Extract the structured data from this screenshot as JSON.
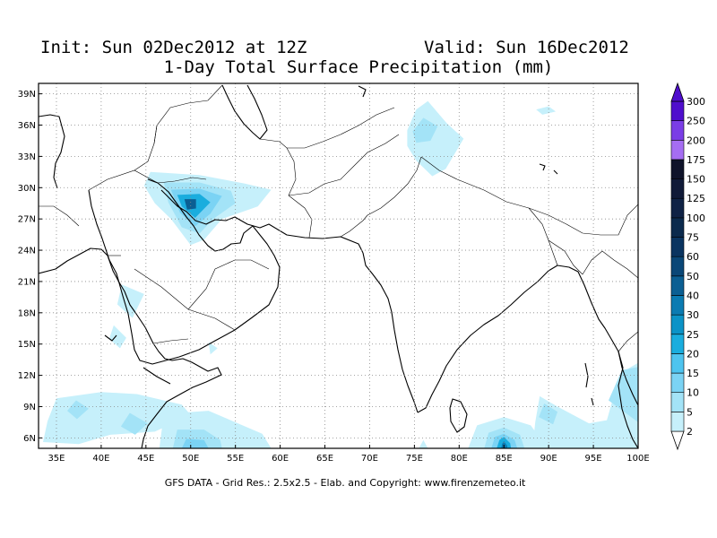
{
  "header": {
    "init": "Init: Sun 02Dec2012 at 12Z",
    "valid": "Valid: Sun 16Dec2012",
    "title": "1-Day Total Surface Precipitation (mm)"
  },
  "map": {
    "lon_range": [
      33,
      100
    ],
    "lat_range": [
      5,
      40
    ],
    "grid": true,
    "lat_ticks": [
      {
        "value": 39,
        "label": "39N"
      },
      {
        "value": 36,
        "label": "36N"
      },
      {
        "value": 33,
        "label": "33N"
      },
      {
        "value": 30,
        "label": "30N"
      },
      {
        "value": 27,
        "label": "27N"
      },
      {
        "value": 24,
        "label": "24N"
      },
      {
        "value": 21,
        "label": "21N"
      },
      {
        "value": 18,
        "label": "18N"
      },
      {
        "value": 15,
        "label": "15N"
      },
      {
        "value": 12,
        "label": "12N"
      },
      {
        "value": 9,
        "label": "9N"
      },
      {
        "value": 6,
        "label": "6N"
      }
    ],
    "lon_ticks": [
      {
        "value": 35,
        "label": "35E"
      },
      {
        "value": 40,
        "label": "40E"
      },
      {
        "value": 45,
        "label": "45E"
      },
      {
        "value": 50,
        "label": "50E"
      },
      {
        "value": 55,
        "label": "55E"
      },
      {
        "value": 60,
        "label": "60E"
      },
      {
        "value": 65,
        "label": "65E"
      },
      {
        "value": 70,
        "label": "70E"
      },
      {
        "value": 75,
        "label": "75E"
      },
      {
        "value": 80,
        "label": "80E"
      },
      {
        "value": 85,
        "label": "85E"
      },
      {
        "value": 90,
        "label": "90E"
      },
      {
        "value": 95,
        "label": "95E"
      },
      {
        "value": 100,
        "label": "100E"
      }
    ],
    "precip_areas": [
      {
        "level": 2,
        "pts": [
          [
            45.5,
            31.5
          ],
          [
            51,
            31.2
          ],
          [
            56,
            30.4
          ],
          [
            59,
            29.8
          ],
          [
            57.5,
            28.2
          ],
          [
            53.5,
            27
          ],
          [
            51.5,
            25
          ],
          [
            50,
            24.5
          ],
          [
            47.8,
            27
          ],
          [
            46,
            28.5
          ],
          [
            44.8,
            30.2
          ]
        ]
      },
      {
        "level": 5,
        "pts": [
          [
            47,
            30.5
          ],
          [
            51,
            30.5
          ],
          [
            54.5,
            29.7
          ],
          [
            55,
            28.5
          ],
          [
            52.5,
            27
          ],
          [
            51,
            25.6
          ],
          [
            49,
            26.2
          ],
          [
            47.5,
            28.6
          ]
        ]
      },
      {
        "level": 10,
        "pts": [
          [
            47.8,
            29.8
          ],
          [
            51,
            29.9
          ],
          [
            53.5,
            29.2
          ],
          [
            52.2,
            27.5
          ],
          [
            50.5,
            26.3
          ],
          [
            48.8,
            27.6
          ]
        ]
      },
      {
        "level": 20,
        "pts": [
          [
            48.5,
            29.3
          ],
          [
            51,
            29.4
          ],
          [
            52.2,
            28.6
          ],
          [
            50.5,
            27.1
          ],
          [
            49,
            28.2
          ]
        ]
      },
      {
        "level": 40,
        "pts": [
          [
            49.3,
            28.9
          ],
          [
            50.6,
            28.9
          ],
          [
            50.6,
            28
          ],
          [
            49.6,
            27.9
          ]
        ]
      },
      {
        "level": 2,
        "pts": [
          [
            42.3,
            20.7
          ],
          [
            44.8,
            19.8
          ],
          [
            43.5,
            17.5
          ],
          [
            41.8,
            18.8
          ]
        ]
      },
      {
        "level": 2,
        "pts": [
          [
            41.4,
            16.8
          ],
          [
            42.8,
            15.6
          ],
          [
            42.1,
            14.6
          ],
          [
            40.9,
            15.5
          ]
        ]
      },
      {
        "level": 2,
        "pts": [
          [
            52,
            15.2
          ],
          [
            53,
            14.6
          ],
          [
            52.2,
            14
          ]
        ]
      },
      {
        "level": 2,
        "pts": [
          [
            35,
            9.8
          ],
          [
            40,
            10.4
          ],
          [
            44,
            10.2
          ],
          [
            49,
            9.2
          ],
          [
            50,
            8.2
          ],
          [
            46,
            6.6
          ],
          [
            41,
            6.3
          ],
          [
            37.5,
            5.4
          ],
          [
            33.5,
            5.6
          ],
          [
            34,
            7.6
          ]
        ]
      },
      {
        "level": 5,
        "pts": [
          [
            37.2,
            9.6
          ],
          [
            38.6,
            8.8
          ],
          [
            37.3,
            7.8
          ],
          [
            36.2,
            8.6
          ]
        ]
      },
      {
        "level": 5,
        "pts": [
          [
            43.2,
            8.4
          ],
          [
            45.2,
            7.4
          ],
          [
            43.8,
            6.3
          ],
          [
            42.2,
            7.1
          ]
        ]
      },
      {
        "level": 2,
        "pts": [
          [
            47,
            8.3
          ],
          [
            52,
            8.6
          ],
          [
            58,
            6.4
          ],
          [
            59,
            5
          ],
          [
            46.5,
            5
          ]
        ]
      },
      {
        "level": 5,
        "pts": [
          [
            48.5,
            6.8
          ],
          [
            51.5,
            6.8
          ],
          [
            53.3,
            5.8
          ],
          [
            53.5,
            5
          ],
          [
            48,
            5
          ]
        ]
      },
      {
        "level": 10,
        "pts": [
          [
            49.5,
            5.9
          ],
          [
            51.5,
            5.8
          ],
          [
            52,
            5
          ],
          [
            49,
            5
          ]
        ]
      },
      {
        "level": 2,
        "pts": [
          [
            74.2,
            35.5
          ],
          [
            75.2,
            37.5
          ],
          [
            76.5,
            38.3
          ],
          [
            78.6,
            36.2
          ],
          [
            80.5,
            34.7
          ],
          [
            78.5,
            31.8
          ],
          [
            77,
            31.1
          ],
          [
            75.2,
            32.6
          ],
          [
            74.2,
            34
          ]
        ]
      },
      {
        "level": 5,
        "pts": [
          [
            74.8,
            35.4
          ],
          [
            76,
            36.7
          ],
          [
            77.6,
            35.9
          ],
          [
            76.8,
            34.5
          ],
          [
            75.2,
            34.3
          ]
        ]
      },
      {
        "level": 2,
        "pts": [
          [
            88.6,
            37.5
          ],
          [
            90,
            37.8
          ],
          [
            90.8,
            37.3
          ],
          [
            89.3,
            37
          ]
        ]
      },
      {
        "level": 2,
        "pts": [
          [
            82,
            7.2
          ],
          [
            85,
            8
          ],
          [
            88,
            7.2
          ],
          [
            89,
            6
          ],
          [
            89,
            5
          ],
          [
            81,
            5
          ]
        ]
      },
      {
        "level": 5,
        "pts": [
          [
            83.3,
            6.5
          ],
          [
            85,
            7
          ],
          [
            86.8,
            6.3
          ],
          [
            87.3,
            5
          ],
          [
            82.8,
            5
          ]
        ]
      },
      {
        "level": 10,
        "pts": [
          [
            84,
            6.1
          ],
          [
            85,
            6.4
          ],
          [
            86.2,
            5.8
          ],
          [
            86.5,
            5
          ],
          [
            83.6,
            5
          ]
        ]
      },
      {
        "level": 20,
        "pts": [
          [
            84.5,
            5.8
          ],
          [
            85,
            6.1
          ],
          [
            85.7,
            5.5
          ],
          [
            85.8,
            5
          ],
          [
            84.2,
            5
          ]
        ]
      },
      {
        "level": 30,
        "pts": [
          [
            84.8,
            5.4
          ],
          [
            85,
            5.7
          ],
          [
            85.4,
            5.2
          ],
          [
            85.3,
            5
          ],
          [
            84.7,
            5
          ]
        ]
      },
      {
        "level": 2,
        "pts": [
          [
            89,
            10
          ],
          [
            91,
            9
          ],
          [
            94.5,
            7.4
          ],
          [
            96.5,
            7.7
          ],
          [
            98,
            12.2
          ],
          [
            100,
            13.2
          ],
          [
            100,
            5
          ],
          [
            88.2,
            5
          ],
          [
            88.5,
            7.5
          ]
        ]
      },
      {
        "level": 5,
        "pts": [
          [
            89.5,
            9.3
          ],
          [
            91,
            8.5
          ],
          [
            90.5,
            7.3
          ],
          [
            88.9,
            8
          ]
        ]
      },
      {
        "level": 5,
        "pts": [
          [
            96.7,
            9.6
          ],
          [
            98.2,
            12.5
          ],
          [
            100,
            12.8
          ],
          [
            100,
            7.5
          ]
        ]
      },
      {
        "level": 2,
        "pts": [
          [
            75.5,
            5
          ],
          [
            76.5,
            5
          ],
          [
            76,
            5.8
          ]
        ]
      }
    ],
    "colors": {
      "2": "#c6f0fb",
      "5": "#a3e3f7",
      "10": "#7bd3f4",
      "15": "#4ec4ef",
      "20": "#1aadde",
      "25": "#0c93c7",
      "30": "#0b7bb2",
      "40": "#0b5f93",
      "50": "#0a4777",
      "60": "#0a3460",
      "75": "#0b2a4d",
      "100": "#0f2245",
      "125": "#101a38",
      "150": "#0f132a",
      "175": "#a56df2",
      "200": "#7a3de6",
      "250": "#4f0ecd",
      "300": "#2b0a8a"
    }
  },
  "colorbar": {
    "labels": [
      "2",
      "5",
      "10",
      "15",
      "20",
      "25",
      "30",
      "40",
      "50",
      "60",
      "75",
      "100",
      "125",
      "150",
      "175",
      "200",
      "250",
      "300"
    ],
    "colors": [
      "#ffffff",
      "#c6f0fb",
      "#a3e3f7",
      "#7bd3f4",
      "#4ec4ef",
      "#1aadde",
      "#0c93c7",
      "#0b7bb2",
      "#0b5f93",
      "#0a4777",
      "#0a3460",
      "#0b2a4d",
      "#0f2245",
      "#101a38",
      "#0f132a",
      "#a56df2",
      "#7a3de6",
      "#4f0ecd",
      "#2b0a8a"
    ]
  },
  "footer": "GFS DATA - Grid Res.: 2.5x2.5 - Elab. and Copyright: www.firenzemeteo.it"
}
